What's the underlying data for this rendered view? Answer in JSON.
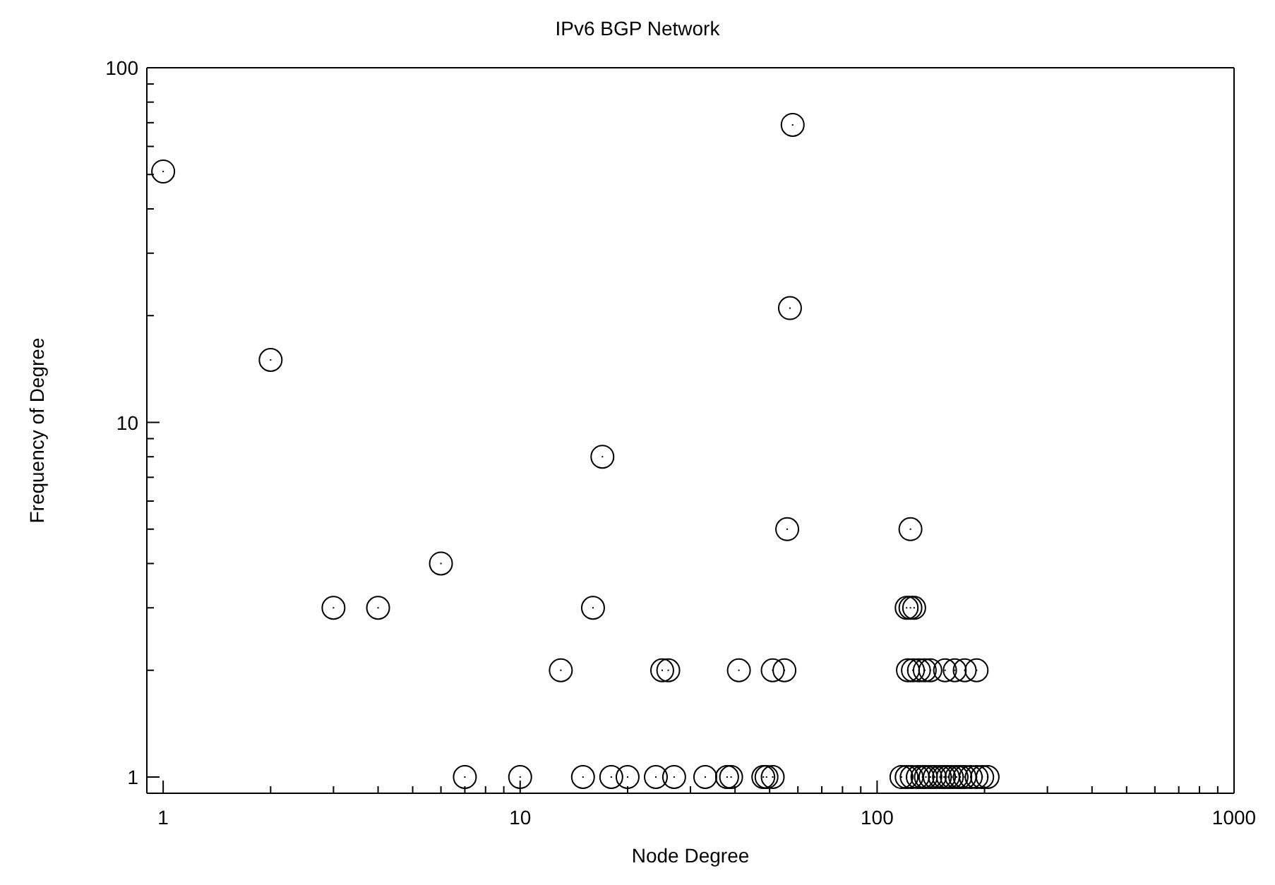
{
  "chart_data": {
    "type": "scatter",
    "title": "IPv6 BGP Network",
    "xlabel": "Node Degree",
    "ylabel": "Frequency of Degree",
    "log": "xy",
    "marker": "circle",
    "xlim": [
      0.9,
      1000
    ],
    "ylim": [
      0.9,
      100
    ],
    "xticks": [
      1,
      {
        "value": 2,
        "label": null
      },
      {
        "value": 3,
        "label": null
      },
      {
        "value": 4,
        "label": null
      },
      {
        "value": 5,
        "label": null
      },
      {
        "value": 6,
        "label": null
      },
      {
        "value": 7,
        "label": null
      },
      {
        "value": 8,
        "label": null
      },
      {
        "value": 9,
        "label": null
      },
      10,
      {
        "value": 20,
        "label": null
      },
      {
        "value": 30,
        "label": null
      },
      {
        "value": 40,
        "label": null
      },
      {
        "value": 50,
        "label": null
      },
      {
        "value": 60,
        "label": null
      },
      {
        "value": 70,
        "label": null
      },
      {
        "value": 80,
        "label": null
      },
      {
        "value": 90,
        "label": null
      },
      100,
      {
        "value": 200,
        "label": null
      },
      {
        "value": 300,
        "label": null
      },
      {
        "value": 400,
        "label": null
      },
      {
        "value": 500,
        "label": null
      },
      {
        "value": 600,
        "label": null
      },
      {
        "value": 700,
        "label": null
      },
      {
        "value": 800,
        "label": null
      },
      {
        "value": 900,
        "label": null
      },
      1000
    ],
    "yticks": [
      1,
      {
        "value": 2,
        "label": null
      },
      {
        "value": 3,
        "label": null
      },
      {
        "value": 4,
        "label": null
      },
      {
        "value": 5,
        "label": null
      },
      {
        "value": 6,
        "label": null
      },
      {
        "value": 7,
        "label": null
      },
      {
        "value": 8,
        "label": null
      },
      {
        "value": 9,
        "label": null
      },
      10,
      {
        "value": 20,
        "label": null
      },
      {
        "value": 30,
        "label": null
      },
      {
        "value": 40,
        "label": null
      },
      {
        "value": 50,
        "label": null
      },
      {
        "value": 60,
        "label": null
      },
      {
        "value": 70,
        "label": null
      },
      {
        "value": 80,
        "label": null
      },
      {
        "value": 90,
        "label": null
      },
      100
    ],
    "series": [
      {
        "color": "#000000",
        "x": [
          1,
          2,
          3,
          4,
          6,
          7,
          10,
          13,
          15,
          16,
          17,
          18,
          20,
          24,
          25,
          26,
          27,
          33,
          38,
          39,
          41,
          48,
          49,
          51,
          51,
          55,
          56,
          57,
          58,
          117,
          121,
          121,
          122,
          124,
          124,
          125,
          126,
          127,
          130,
          131,
          134,
          136,
          137,
          141,
          141,
          145,
          150,
          154,
          155,
          158,
          162,
          165,
          167,
          171,
          176,
          176,
          183,
          190,
          190,
          197,
          204
        ],
        "values": [
          51,
          15,
          3,
          3,
          4,
          1,
          1,
          2,
          1,
          3,
          8,
          1,
          1,
          1,
          2,
          2,
          1,
          1,
          1,
          1,
          2,
          1,
          1,
          1,
          2,
          2,
          5,
          21,
          69,
          1,
          1,
          3,
          2,
          5,
          3,
          1,
          2,
          3,
          1,
          2,
          1,
          2,
          1,
          1,
          2,
          1,
          1,
          1,
          2,
          1,
          1,
          2,
          1,
          1,
          1,
          2,
          1,
          1,
          2,
          1,
          1
        ]
      }
    ]
  }
}
